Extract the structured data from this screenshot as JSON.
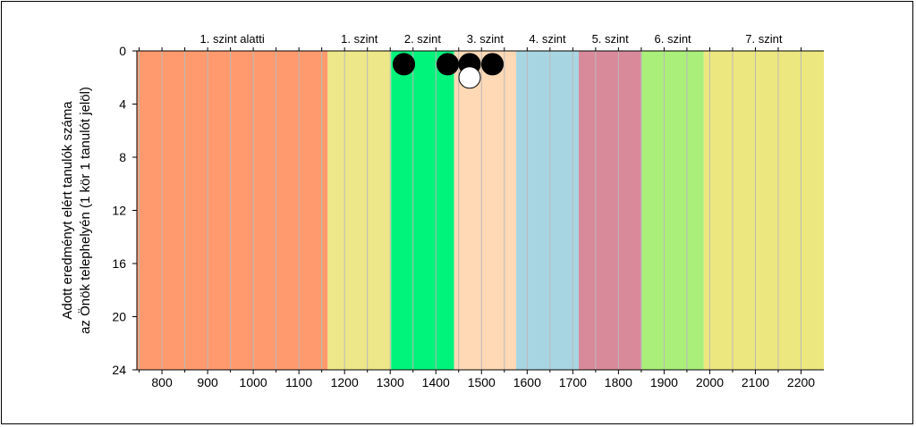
{
  "chart_data": {
    "type": "scatter",
    "title": "",
    "ylabel_lines": [
      "Adott eredményt elért tanulók száma",
      "az Önök telephelyén (1 kör 1 tanulót jelöl)"
    ],
    "xlim": [
      745,
      2250
    ],
    "ylim": [
      24,
      0
    ],
    "x_ticks": [
      800,
      900,
      1000,
      1100,
      1200,
      1300,
      1400,
      1500,
      1600,
      1700,
      1800,
      1900,
      2000,
      2100,
      2200
    ],
    "y_ticks": [
      0,
      4,
      8,
      12,
      16,
      20,
      24
    ],
    "minor_grid_step": 50,
    "levels": [
      {
        "label": "1. szint alatti",
        "from": 745,
        "to": 1163,
        "color": "#ff9a6e"
      },
      {
        "label": "1. szint",
        "from": 1163,
        "to": 1302,
        "color": "#ede789"
      },
      {
        "label": "2. szint",
        "from": 1302,
        "to": 1440,
        "color": "#00f37a"
      },
      {
        "label": "3. szint",
        "from": 1440,
        "to": 1576,
        "color": "#ffd9b5"
      },
      {
        "label": "4. szint",
        "from": 1576,
        "to": 1713,
        "color": "#a8d5e2"
      },
      {
        "label": "5. szint",
        "from": 1713,
        "to": 1851,
        "color": "#d88a9a"
      },
      {
        "label": "6. szint",
        "from": 1851,
        "to": 1987,
        "color": "#aaef7a"
      },
      {
        "label": "7. szint",
        "from": 1987,
        "to": 2250,
        "color": "#ede77f"
      }
    ],
    "points": [
      {
        "x": 1330,
        "y": 1,
        "filled": true
      },
      {
        "x": 1426,
        "y": 1,
        "filled": true
      },
      {
        "x": 1474,
        "y": 1,
        "filled": true
      },
      {
        "x": 1524,
        "y": 1,
        "filled": true
      },
      {
        "x": 1474,
        "y": 2,
        "filled": false
      }
    ],
    "filled_color": "#000000",
    "hollow_color": "#ffffff",
    "grid_color": "#b9b9b9"
  }
}
